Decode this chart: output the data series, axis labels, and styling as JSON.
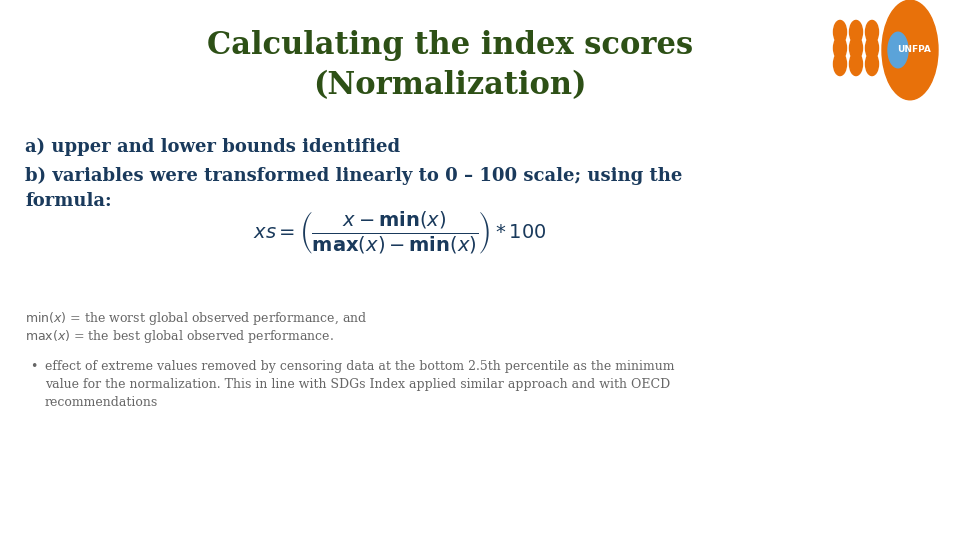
{
  "background_color": "#ffffff",
  "title_line1": "Calculating the index scores",
  "title_line2": "(Normalization)",
  "title_color": "#1a5c2a",
  "title_fontsize": 22,
  "body_color": "#1a3a5c",
  "body_fontsize": 13,
  "small_fontsize": 9,
  "small_color": "#555555",
  "formula_color": "#1a3a5c",
  "formula_fontsize": 15,
  "text_a": "a) upper and lower bounds identified",
  "text_b": "b) variables were transformed linearly to 0 – 100 scale; using the\nformula:",
  "formula": "$xs = \\left( \\dfrac{x - \\mathbf{min}(x)}{\\mathbf{max}(x) - \\mathbf{min}(x)} \\right) * 100$",
  "footnote1": "$\\mathrm{min}(x)$ = the worst global observed performance, and",
  "footnote2": "$\\mathrm{max}(x)$ = the best global observed performance.",
  "bullet_text": "effect of extreme values removed by censoring data at the bottom 2.5th percentile as the minimum\nvalue for the normalization. This in line with SDGs Index applied similar approach and with OECD\nrecommendations",
  "logo_orange": "#e8710a",
  "logo_dot_color": "#e8710a",
  "title_green": "#2d5c1e"
}
